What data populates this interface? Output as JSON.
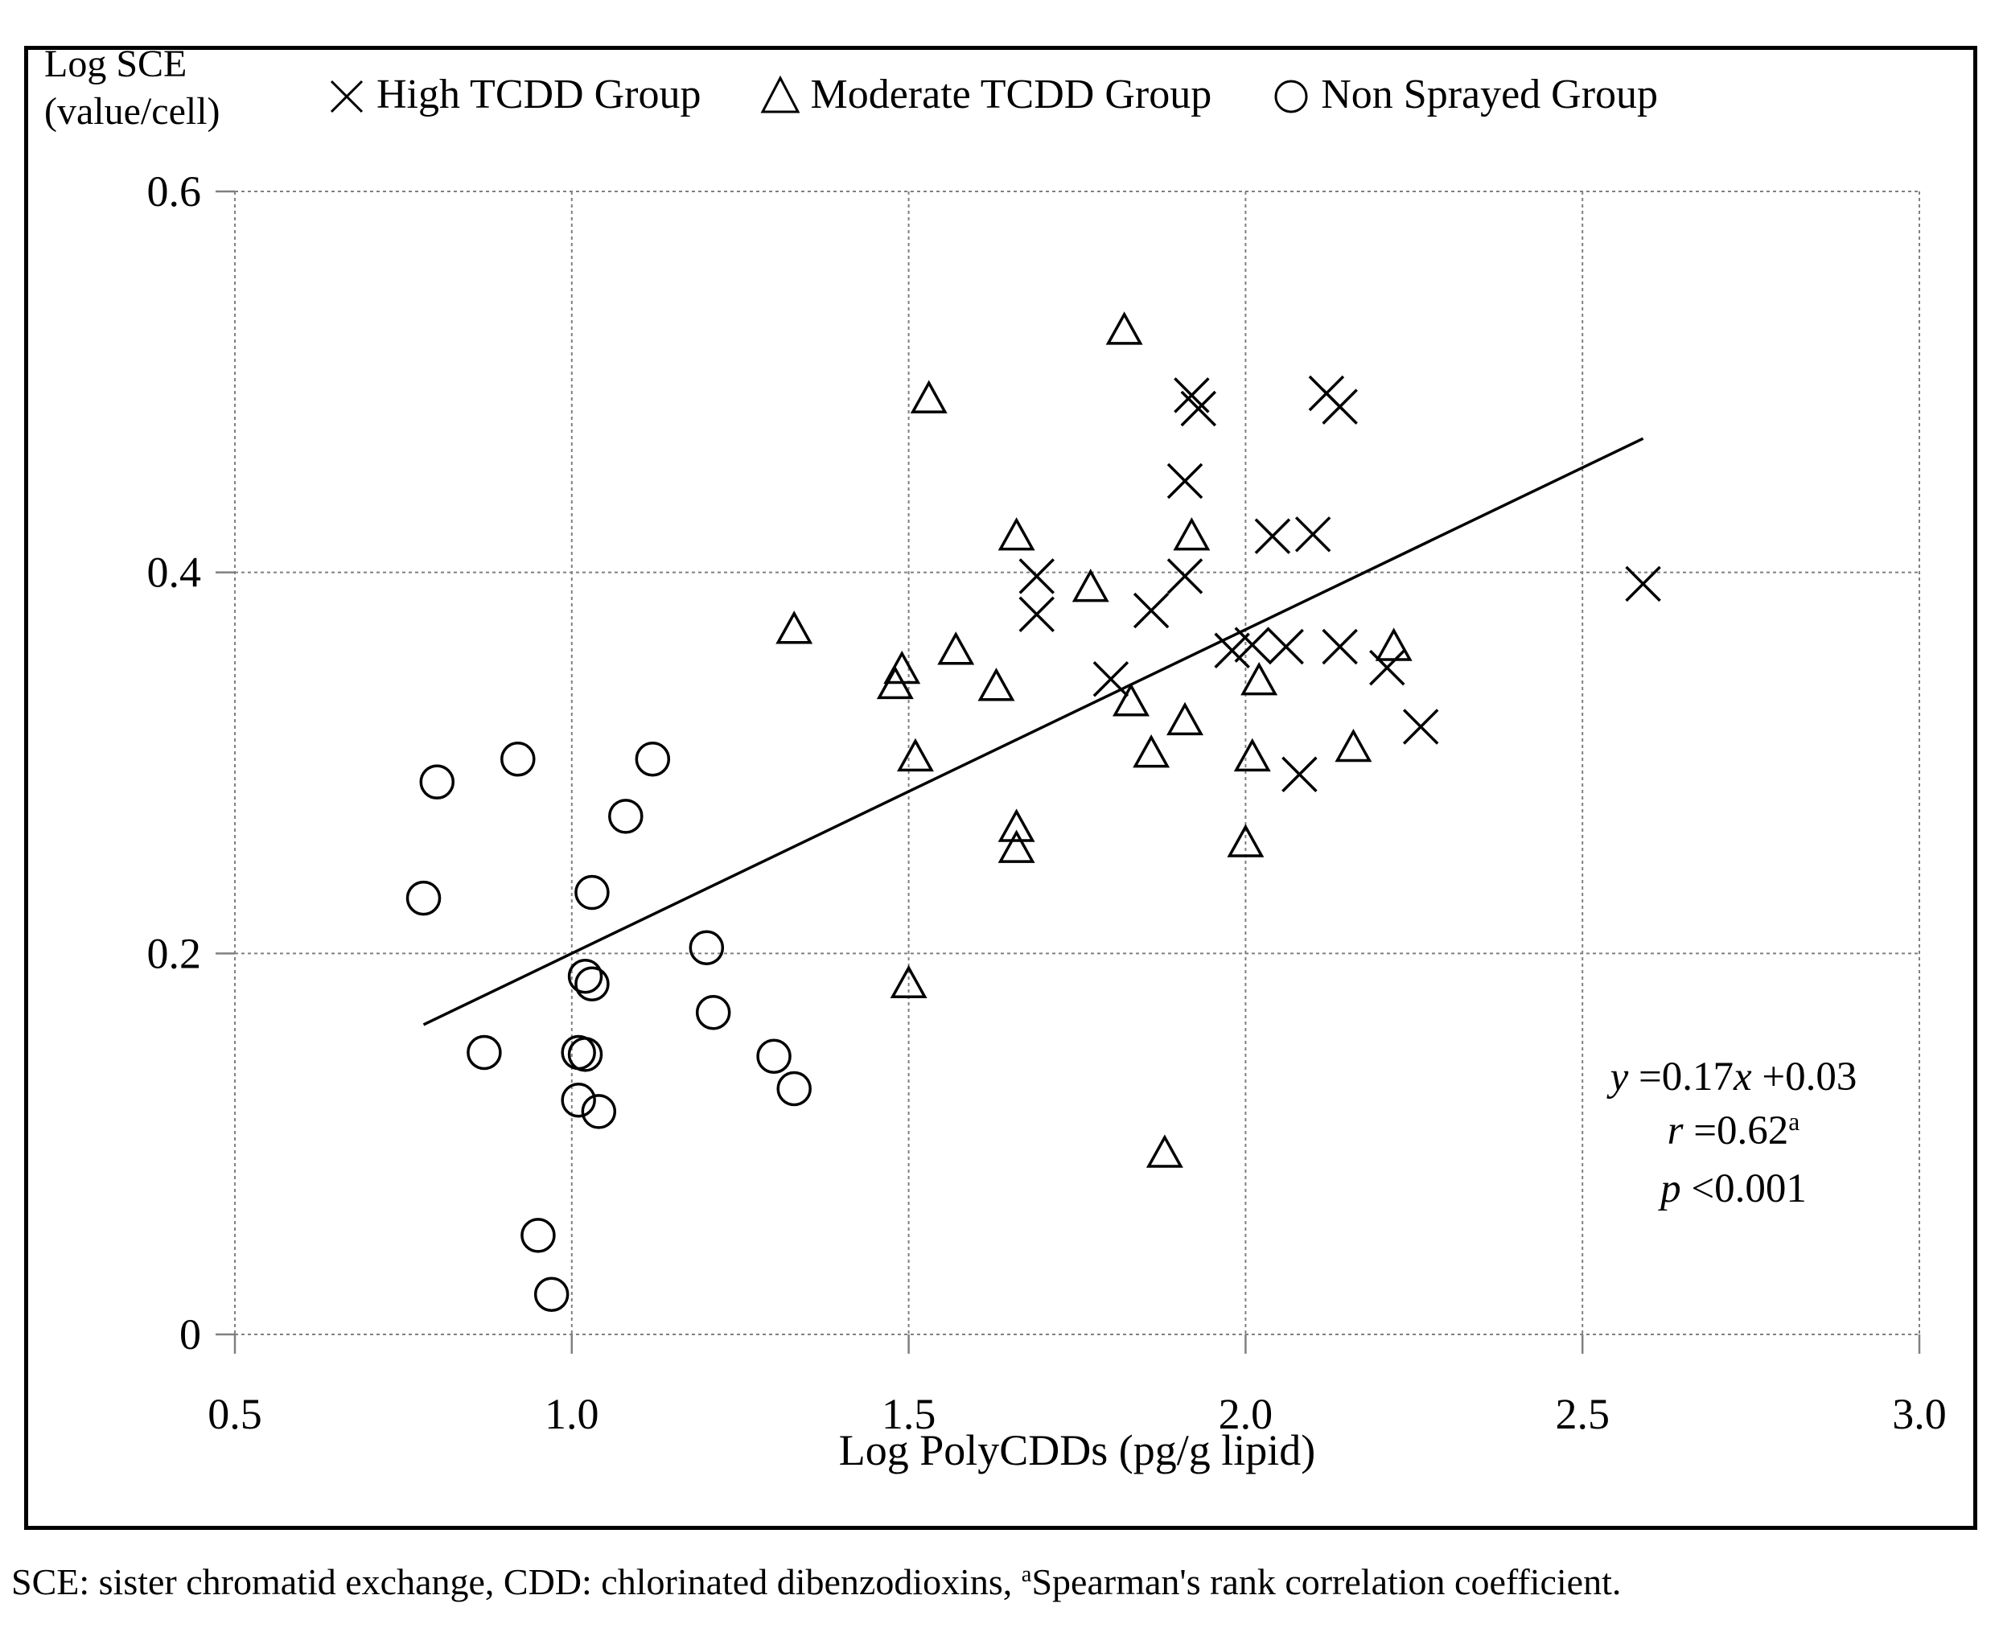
{
  "figure": {
    "y_axis_title_line1": "Log SCE",
    "y_axis_title_line2": "(value/cell)",
    "xlabel": "Log PolyCDDs (pg/g lipid)",
    "legend": {
      "items": [
        {
          "marker": "x",
          "label": "High TCDD Group"
        },
        {
          "marker": "triangle",
          "label": "Moderate TCDD Group"
        },
        {
          "marker": "circle",
          "label": "Non Sprayed Group"
        }
      ]
    },
    "annotation_lines": [
      {
        "segments": [
          {
            "t": "y",
            "i": true
          },
          {
            "t": " =0.17"
          },
          {
            "t": "x",
            "i": true
          },
          {
            "t": " +0.03"
          }
        ]
      },
      {
        "segments": [
          {
            "t": "r",
            "i": true
          },
          {
            "t": " =0.62"
          },
          {
            "t": "a",
            "sup": true
          }
        ]
      },
      {
        "segments": [
          {
            "t": "p",
            "i": true
          },
          {
            "t": " <0.001"
          }
        ]
      }
    ],
    "caption_segments": [
      {
        "t": "SCE: sister chromatid exchange, CDD: chlorinated dibenzodioxins, "
      },
      {
        "t": "a",
        "sup": true
      },
      {
        "t": "Spearman's rank correlation coefficient."
      }
    ]
  },
  "chart_data": {
    "type": "scatter",
    "xlabel": "Log PolyCDDs (pg/g lipid)",
    "ylabel": "Log SCE (value/cell)",
    "xlim": [
      0.5,
      3.0
    ],
    "ylim": [
      0,
      0.6
    ],
    "x_ticks": [
      0.5,
      1.0,
      1.5,
      2.0,
      2.5,
      3.0
    ],
    "x_tick_labels": [
      "0.5",
      "1.0",
      "1.5",
      "2.0",
      "2.5",
      "3.0"
    ],
    "y_ticks": [
      0,
      0.2,
      0.4,
      0.6
    ],
    "y_tick_labels": [
      "0",
      "0.2",
      "0.4",
      "0.6"
    ],
    "grid": true,
    "grid_color": "#808080",
    "marker_color": "#000000",
    "legend_position": "top",
    "series": [
      {
        "name": "High TCDD Group",
        "marker": "x",
        "points": [
          [
            1.92,
            0.493
          ],
          [
            1.93,
            0.486
          ],
          [
            2.12,
            0.494
          ],
          [
            2.14,
            0.487
          ],
          [
            1.91,
            0.448
          ],
          [
            2.04,
            0.419
          ],
          [
            2.1,
            0.42
          ],
          [
            1.69,
            0.398
          ],
          [
            1.91,
            0.398
          ],
          [
            1.69,
            0.378
          ],
          [
            1.86,
            0.38
          ],
          [
            1.8,
            0.344
          ],
          [
            1.98,
            0.359
          ],
          [
            2.01,
            0.362
          ],
          [
            2.06,
            0.361
          ],
          [
            2.14,
            0.361
          ],
          [
            2.21,
            0.35
          ],
          [
            2.26,
            0.319
          ],
          [
            2.08,
            0.294
          ],
          [
            2.59,
            0.394
          ]
        ]
      },
      {
        "name": "Moderate TCDD Group",
        "marker": "triangle",
        "points": [
          [
            1.82,
            0.527
          ],
          [
            1.53,
            0.491
          ],
          [
            1.66,
            0.419
          ],
          [
            1.92,
            0.419
          ],
          [
            1.77,
            0.392
          ],
          [
            1.33,
            0.37
          ],
          [
            1.57,
            0.359
          ],
          [
            1.49,
            0.349
          ],
          [
            1.48,
            0.341
          ],
          [
            1.63,
            0.34
          ],
          [
            1.83,
            0.332
          ],
          [
            1.91,
            0.322
          ],
          [
            1.86,
            0.305
          ],
          [
            1.51,
            0.303
          ],
          [
            2.02,
            0.343
          ],
          [
            2.22,
            0.361
          ],
          [
            2.16,
            0.308
          ],
          [
            2.01,
            0.303
          ],
          [
            1.66,
            0.266
          ],
          [
            1.66,
            0.255
          ],
          [
            2.0,
            0.258
          ],
          [
            1.5,
            0.184
          ],
          [
            1.88,
            0.095
          ]
        ]
      },
      {
        "name": "Non Sprayed Group",
        "marker": "circle",
        "points": [
          [
            0.8,
            0.29
          ],
          [
            0.92,
            0.302
          ],
          [
            1.12,
            0.302
          ],
          [
            1.08,
            0.272
          ],
          [
            0.78,
            0.229
          ],
          [
            1.03,
            0.232
          ],
          [
            1.2,
            0.203
          ],
          [
            1.02,
            0.188
          ],
          [
            1.03,
            0.184
          ],
          [
            1.21,
            0.169
          ],
          [
            0.87,
            0.148
          ],
          [
            1.01,
            0.148
          ],
          [
            1.02,
            0.147
          ],
          [
            1.3,
            0.146
          ],
          [
            1.33,
            0.129
          ],
          [
            1.01,
            0.123
          ],
          [
            1.04,
            0.117
          ],
          [
            0.95,
            0.052
          ],
          [
            0.97,
            0.021
          ]
        ]
      }
    ],
    "regression": {
      "slope": 0.17,
      "intercept": 0.03,
      "x_start": 0.78,
      "x_end": 2.59,
      "equation": "y = 0.17x + 0.03",
      "r": "0.62",
      "r_note": "Spearman's rank correlation coefficient",
      "p": "<0.001"
    }
  }
}
